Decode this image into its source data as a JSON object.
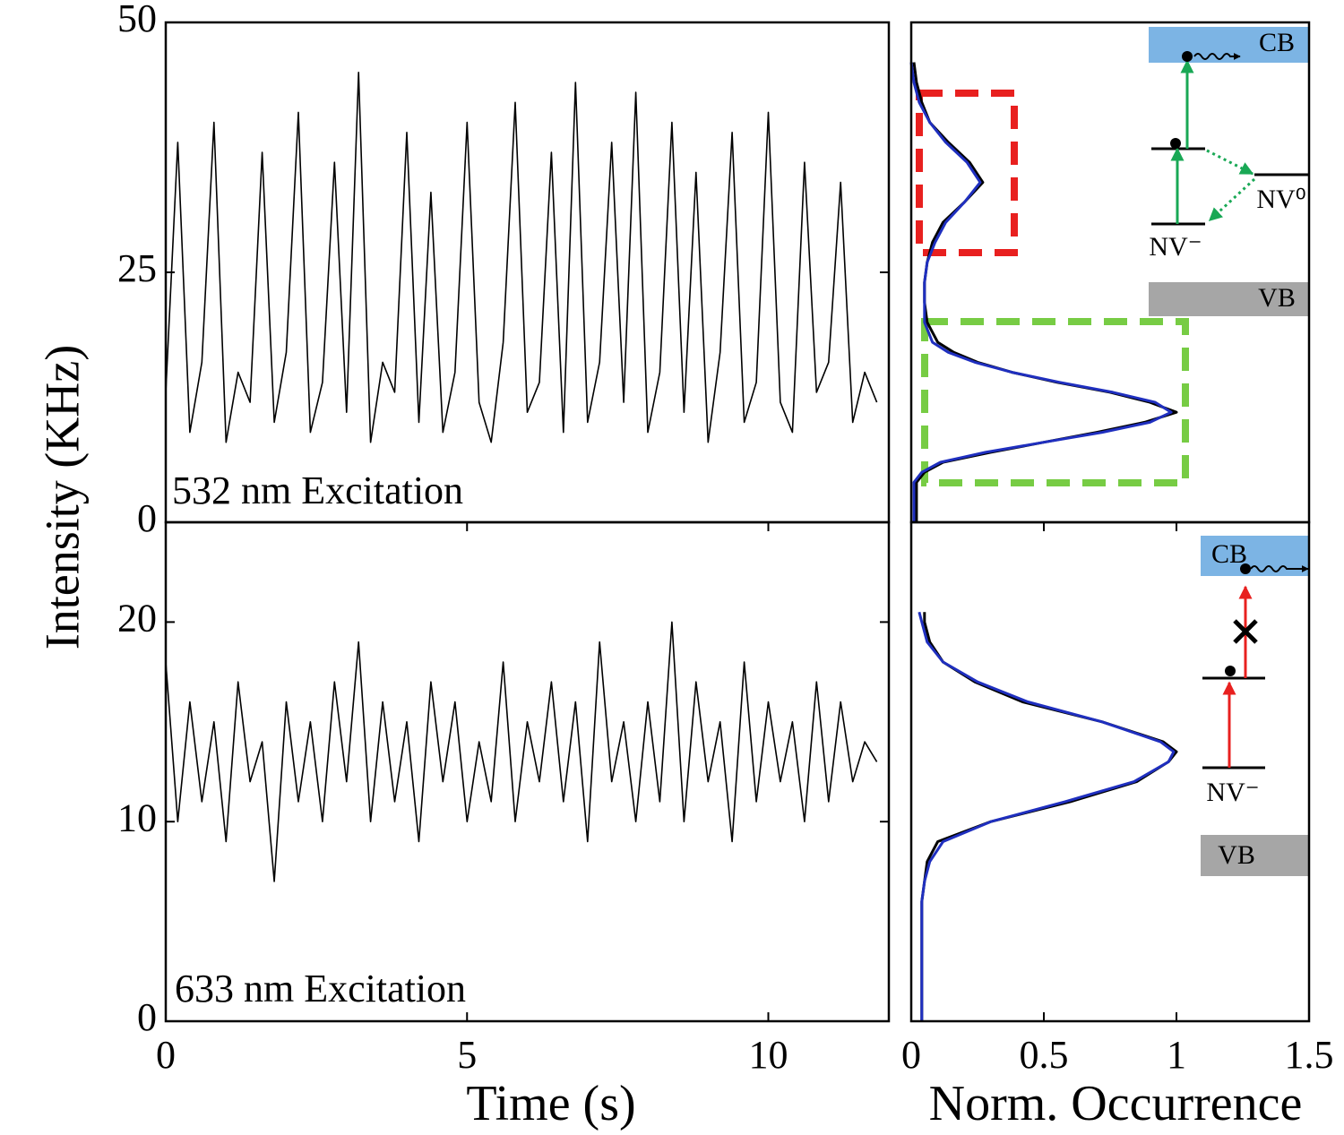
{
  "chart_data": [
    {
      "type": "line",
      "ylabel": "Intensity (KHz)",
      "annotation": "532 nm Excitation",
      "xlim": [
        0,
        12
      ],
      "ylim": [
        0,
        50
      ],
      "yticks": [
        0,
        25,
        50
      ],
      "x": [
        0,
        0.2,
        0.4,
        0.6,
        0.8,
        1,
        1.2,
        1.4,
        1.6,
        1.8,
        2,
        2.2,
        2.4,
        2.6,
        2.8,
        3,
        3.2,
        3.4,
        3.6,
        3.8,
        4,
        4.2,
        4.4,
        4.6,
        4.8,
        5,
        5.2,
        5.4,
        5.6,
        5.8,
        6,
        6.2,
        6.4,
        6.6,
        6.8,
        7,
        7.2,
        7.4,
        7.6,
        7.8,
        8,
        8.2,
        8.4,
        8.6,
        8.8,
        9,
        9.2,
        9.4,
        9.6,
        9.8,
        10,
        10.2,
        10.4,
        10.6,
        10.8,
        11,
        11.2,
        11.4,
        11.6,
        11.8
      ],
      "series": [
        {
          "color": "#000000",
          "values": [
            13,
            38,
            9,
            16,
            40,
            8,
            15,
            12,
            37,
            10,
            17,
            41,
            9,
            14,
            36,
            11,
            45,
            8,
            16,
            13,
            39,
            10,
            33,
            9,
            15,
            40,
            12,
            8,
            18,
            42,
            11,
            14,
            37,
            9,
            44,
            10,
            16,
            38,
            12,
            43,
            9,
            15,
            40,
            11,
            35,
            8,
            17,
            39,
            10,
            14,
            41,
            12,
            9,
            36,
            13,
            16,
            34,
            10,
            15,
            12
          ]
        }
      ]
    },
    {
      "type": "line",
      "xlabel": "Time (s)",
      "annotation": "633 nm Excitation",
      "xlim": [
        0,
        12
      ],
      "ylim": [
        0,
        25
      ],
      "xticks": [
        0,
        5,
        10
      ],
      "yticks": [
        0,
        10,
        20
      ],
      "x": [
        0,
        0.2,
        0.4,
        0.6,
        0.8,
        1,
        1.2,
        1.4,
        1.6,
        1.8,
        2,
        2.2,
        2.4,
        2.6,
        2.8,
        3,
        3.2,
        3.4,
        3.6,
        3.8,
        4,
        4.2,
        4.4,
        4.6,
        4.8,
        5,
        5.2,
        5.4,
        5.6,
        5.8,
        6,
        6.2,
        6.4,
        6.6,
        6.8,
        7,
        7.2,
        7.4,
        7.6,
        7.8,
        8,
        8.2,
        8.4,
        8.6,
        8.8,
        9,
        9.2,
        9.4,
        9.6,
        9.8,
        10,
        10.2,
        10.4,
        10.6,
        10.8,
        11,
        11.2,
        11.4,
        11.6,
        11.8
      ],
      "series": [
        {
          "color": "#000000",
          "values": [
            18,
            10,
            16,
            11,
            15,
            9,
            17,
            12,
            14,
            7,
            16,
            11,
            15,
            10,
            17,
            12,
            19,
            10,
            16,
            11,
            15,
            9,
            17,
            12,
            16,
            10,
            14,
            11,
            18,
            10,
            15,
            12,
            17,
            11,
            16,
            9,
            19,
            12,
            15,
            10,
            16,
            11,
            20,
            10,
            17,
            12,
            15,
            9,
            18,
            11,
            16,
            12,
            15,
            10,
            17,
            11,
            16,
            12,
            14,
            13
          ]
        }
      ]
    },
    {
      "type": "line",
      "orientation": "horizontal",
      "xlim": [
        0,
        1.5
      ],
      "ylim": [
        0,
        50
      ],
      "levels": {
        "cb": "CB",
        "vb": "VB",
        "ground": "NV⁻",
        "neutral": "NV⁰"
      },
      "y": [
        0,
        2,
        4,
        5,
        6,
        7,
        8,
        9,
        10,
        11,
        12,
        13,
        14,
        15,
        16,
        17,
        18,
        20,
        22,
        24,
        26,
        28,
        30,
        32,
        34,
        36,
        38,
        40,
        42,
        44,
        46
      ],
      "series": [
        {
          "color": "#000000",
          "values": [
            0.02,
            0.02,
            0.02,
            0.05,
            0.12,
            0.3,
            0.5,
            0.7,
            0.88,
            1.0,
            0.9,
            0.75,
            0.55,
            0.38,
            0.25,
            0.16,
            0.1,
            0.06,
            0.05,
            0.05,
            0.06,
            0.08,
            0.12,
            0.2,
            0.27,
            0.22,
            0.14,
            0.07,
            0.04,
            0.02,
            0.01
          ]
        },
        {
          "color": "#1f2fbf",
          "values": [
            0.01,
            0.01,
            0.01,
            0.04,
            0.11,
            0.28,
            0.5,
            0.72,
            0.9,
            0.98,
            0.92,
            0.76,
            0.56,
            0.38,
            0.24,
            0.14,
            0.08,
            0.05,
            0.05,
            0.05,
            0.06,
            0.09,
            0.13,
            0.2,
            0.26,
            0.21,
            0.13,
            0.07,
            0.03,
            0.01,
            0.0
          ]
        }
      ]
    },
    {
      "type": "line",
      "orientation": "horizontal",
      "xlabel": "Norm. Occurrence",
      "xlim": [
        0,
        1.5
      ],
      "ylim": [
        0,
        25
      ],
      "xticks": [
        0,
        0.5,
        1,
        1.5
      ],
      "levels": {
        "cb": "CB",
        "vb": "VB",
        "ground": "NV⁻"
      },
      "y": [
        0,
        2,
        4,
        6,
        7,
        8,
        9,
        10,
        11,
        12,
        13,
        13.5,
        14,
        15,
        16,
        17,
        18,
        19,
        20,
        20.5
      ],
      "series": [
        {
          "color": "#000000",
          "values": [
            0.04,
            0.04,
            0.04,
            0.04,
            0.05,
            0.06,
            0.1,
            0.3,
            0.6,
            0.85,
            0.97,
            1.0,
            0.95,
            0.72,
            0.42,
            0.24,
            0.12,
            0.07,
            0.05,
            0.05
          ]
        },
        {
          "color": "#1f2fbf",
          "values": [
            0.04,
            0.04,
            0.04,
            0.04,
            0.05,
            0.07,
            0.12,
            0.3,
            0.58,
            0.84,
            0.97,
            0.99,
            0.94,
            0.72,
            0.44,
            0.25,
            0.12,
            0.06,
            0.04,
            0.03
          ]
        }
      ]
    }
  ]
}
